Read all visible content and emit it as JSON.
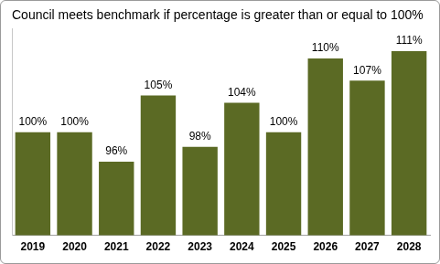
{
  "chart_data": {
    "type": "bar",
    "title": "Council meets benchmark if percentage is greater than or equal to 100%",
    "categories": [
      "2019",
      "2020",
      "2021",
      "2022",
      "2023",
      "2024",
      "2025",
      "2026",
      "2027",
      "2028"
    ],
    "values": [
      100,
      100,
      96,
      105,
      98,
      104,
      100,
      110,
      107,
      111
    ],
    "value_labels": [
      "100%",
      "100%",
      "96%",
      "105%",
      "98%",
      "104%",
      "100%",
      "110%",
      "107%",
      "111%"
    ],
    "color": "#5b6a24",
    "ylim": [
      86,
      114
    ],
    "grid": false,
    "data_labels": true,
    "tick_labels": "x"
  }
}
